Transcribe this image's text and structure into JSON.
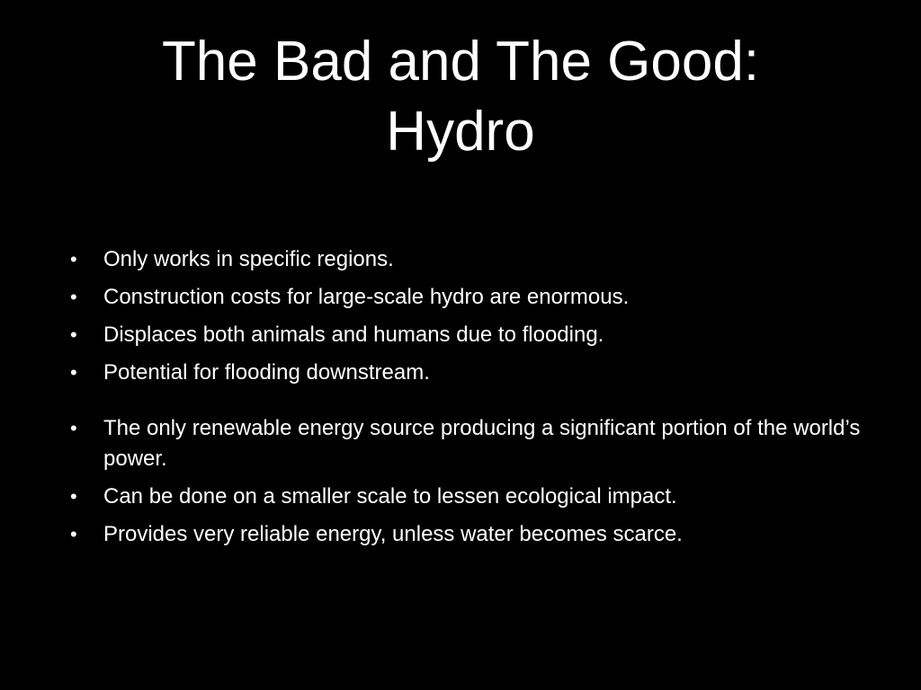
{
  "slide": {
    "title_line1": "The Bad and The Good:",
    "title_line2": "Hydro",
    "bullet_glyph": "•",
    "bad_points": [
      "Only works in specific regions.",
      "Construction costs for large-scale hydro are enormous.",
      "Displaces both animals and humans due to flooding.",
      "Potential for flooding downstream."
    ],
    "good_points": [
      "The only renewable energy source producing a significant portion of the world’s power.",
      "Can be done on a smaller scale to lessen ecological impact.",
      "Provides very reliable energy, unless water becomes scarce."
    ]
  },
  "colors": {
    "background": "#000000",
    "text": "#ffffff"
  }
}
